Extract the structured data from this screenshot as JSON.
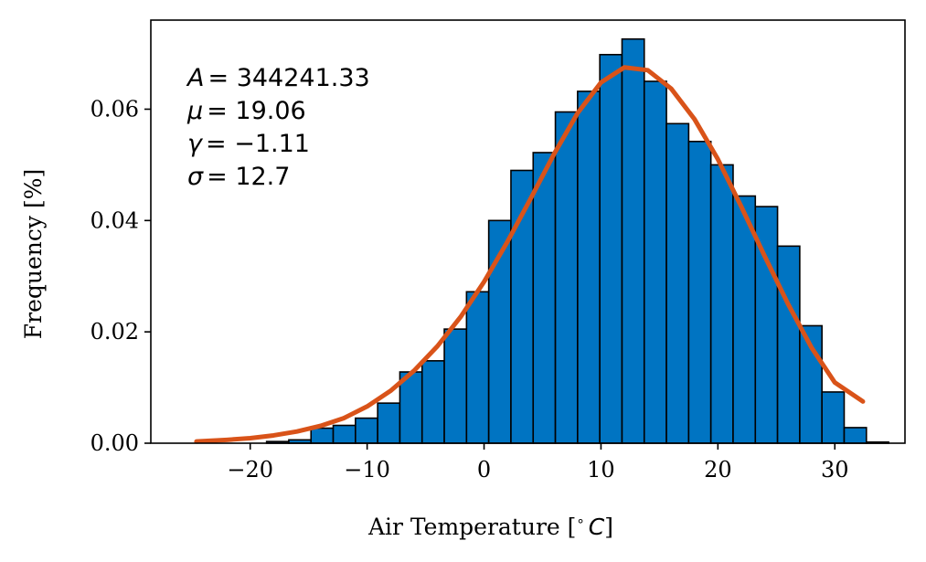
{
  "chart_data": {
    "type": "bar",
    "xlabel": "Air Temperature [$^\\circ C$]",
    "xlabel_parts": {
      "prefix": "Air Temperature [",
      "degree": "∘",
      "unit": "C",
      "suffix": "]"
    },
    "ylabel": "Frequency [%]",
    "xlim": [
      -28.5,
      36
    ],
    "ylim": [
      0,
      0.076
    ],
    "xticks": [
      -20,
      -10,
      0,
      10,
      20,
      30
    ],
    "xtick_labels": [
      "−20",
      "−10",
      "0",
      "10",
      "20",
      "30"
    ],
    "yticks": [
      0.0,
      0.02,
      0.04,
      0.06
    ],
    "ytick_labels": [
      "0.00",
      "0.02",
      "0.04",
      "0.06"
    ],
    "grid": false,
    "bin_width": 1.9,
    "bins": [
      {
        "x0": -18.6,
        "height": 0.0003
      },
      {
        "x0": -16.7,
        "height": 0.0006
      },
      {
        "x0": -14.8,
        "height": 0.0027
      },
      {
        "x0": -12.9,
        "height": 0.0032
      },
      {
        "x0": -11.0,
        "height": 0.0045
      },
      {
        "x0": -9.1,
        "height": 0.0072
      },
      {
        "x0": -7.2,
        "height": 0.0128
      },
      {
        "x0": -5.3,
        "height": 0.0148
      },
      {
        "x0": -3.4,
        "height": 0.0205
      },
      {
        "x0": -1.5,
        "height": 0.0272
      },
      {
        "x0": 0.4,
        "height": 0.04
      },
      {
        "x0": 2.3,
        "height": 0.049
      },
      {
        "x0": 4.2,
        "height": 0.0522
      },
      {
        "x0": 6.1,
        "height": 0.0595
      },
      {
        "x0": 8.0,
        "height": 0.0632
      },
      {
        "x0": 9.9,
        "height": 0.0698
      },
      {
        "x0": 11.8,
        "height": 0.0726
      },
      {
        "x0": 13.7,
        "height": 0.065
      },
      {
        "x0": 15.6,
        "height": 0.0574
      },
      {
        "x0": 17.5,
        "height": 0.0542
      },
      {
        "x0": 19.4,
        "height": 0.05
      },
      {
        "x0": 21.3,
        "height": 0.0444
      },
      {
        "x0": 23.2,
        "height": 0.0425
      },
      {
        "x0": 25.1,
        "height": 0.0354
      },
      {
        "x0": 27.0,
        "height": 0.0211
      },
      {
        "x0": 28.9,
        "height": 0.0092
      },
      {
        "x0": 30.8,
        "height": 0.0028
      },
      {
        "x0": 32.7,
        "height": 0.0002
      }
    ],
    "bar_color": "#0074c2",
    "bar_edge_color": "#000000",
    "fit_curve": {
      "color": "#d95319",
      "x": [
        -24.6,
        -22.0,
        -20.0,
        -18.0,
        -16.0,
        -14.0,
        -12.0,
        -10.0,
        -8.0,
        -6.0,
        -4.0,
        -2.0,
        0.0,
        2.0,
        4.0,
        6.0,
        8.0,
        10.0,
        12.0,
        14.0,
        16.0,
        18.0,
        20.0,
        22.0,
        24.0,
        26.0,
        28.0,
        30.0,
        32.4
      ],
      "y": [
        0.0003,
        0.0006,
        0.0009,
        0.0014,
        0.0021,
        0.0031,
        0.0045,
        0.0066,
        0.0094,
        0.013,
        0.0174,
        0.0227,
        0.029,
        0.0362,
        0.044,
        0.052,
        0.0593,
        0.0648,
        0.0675,
        0.067,
        0.0637,
        0.0582,
        0.051,
        0.0425,
        0.0336,
        0.025,
        0.0172,
        0.0109,
        0.0075
      ]
    },
    "annotations": [
      {
        "symbol": "A",
        "value": "= 344241.33"
      },
      {
        "symbol": "μ",
        "value": "= 19.06"
      },
      {
        "symbol": "γ",
        "value": "= −1.11"
      },
      {
        "symbol": "σ",
        "value": "= 12.7"
      }
    ]
  }
}
